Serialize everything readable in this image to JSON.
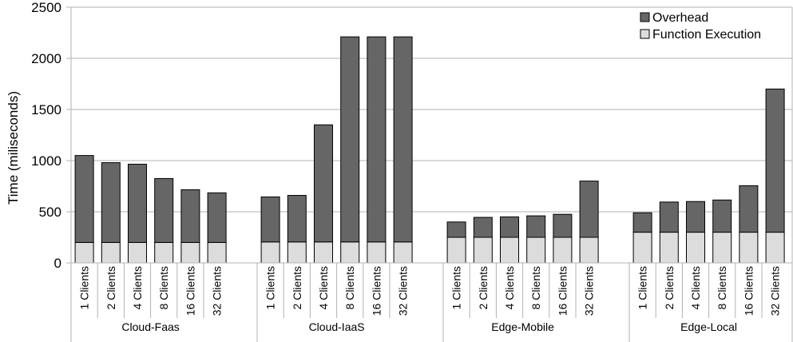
{
  "chart_data": {
    "type": "bar",
    "stacked": true,
    "ylabel": "Time (miliseconds)",
    "ylim": [
      0,
      2500
    ],
    "yticks": [
      0,
      500,
      1000,
      1500,
      2000,
      2500
    ],
    "grid": true,
    "legend_position": "top-right",
    "groups": [
      {
        "name": "Cloud-Faas",
        "categories": [
          "1 Clients",
          "2 Clients",
          "4 Clients",
          "8 Clients",
          "16 Clients",
          "32 Clients"
        ]
      },
      {
        "name": "Cloud-IaaS",
        "categories": [
          "1 Clients",
          "2 Clients",
          "4 Clients",
          "8 Clients",
          "16 Clients",
          "32 Clients"
        ]
      },
      {
        "name": "Edge-Mobile",
        "categories": [
          "1 Clients",
          "2 Clients",
          "4 Clients",
          "8 Clients",
          "16 Clients",
          "32 Clients"
        ]
      },
      {
        "name": "Edge-Local",
        "categories": [
          "1 Clients",
          "2 Clients",
          "4 Clients",
          "8 Clients",
          "16 Clients",
          "32 Clients"
        ]
      }
    ],
    "series": [
      {
        "name": "Function Execution",
        "color": "#dcdcdc",
        "values": [
          [
            200,
            200,
            200,
            200,
            200,
            200
          ],
          [
            205,
            205,
            205,
            205,
            205,
            205
          ],
          [
            250,
            250,
            250,
            250,
            250,
            250
          ],
          [
            300,
            300,
            300,
            300,
            300,
            300
          ]
        ]
      },
      {
        "name": "Overhead",
        "color": "#666666",
        "values": [
          [
            850,
            780,
            765,
            625,
            515,
            485
          ],
          [
            440,
            455,
            1145,
            2005,
            2005,
            2005
          ],
          [
            150,
            195,
            200,
            210,
            225,
            550
          ],
          [
            190,
            295,
            300,
            315,
            455,
            1400
          ]
        ]
      }
    ],
    "legend_order": [
      "Overhead",
      "Function Execution"
    ]
  }
}
